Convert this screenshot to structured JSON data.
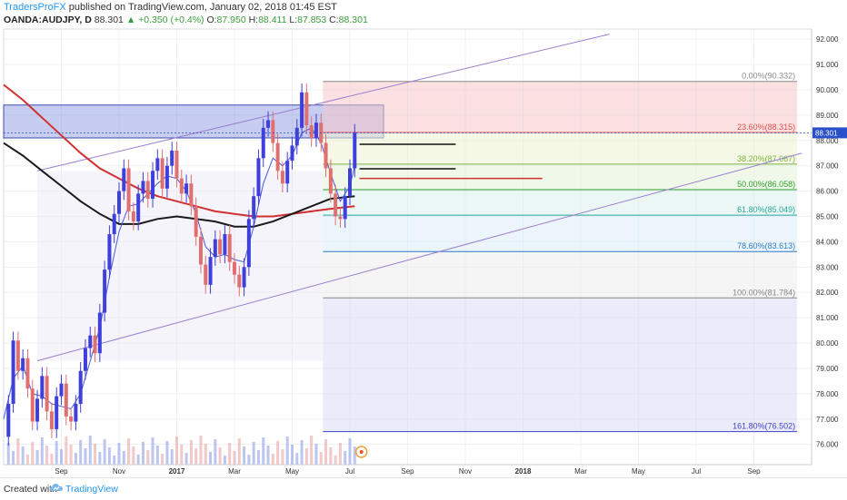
{
  "header": {
    "publisher": "TradersProFX",
    "published_text": "published on TradingView.com, January 02, 2018 01:45 EST",
    "symbol": "OANDA:AUDJPY, D",
    "last": "88.301",
    "change_arrow": "▲",
    "change": "+0.350 (+0.4%)",
    "o_label": "O:",
    "o_value": "87.950",
    "h_label": "H:",
    "h_value": "88.411",
    "l_label": "L:",
    "l_value": "87.853",
    "c_label": "C:",
    "c_value": "88.301"
  },
  "footer": {
    "created_with": "Created with",
    "brand": "TradingView",
    "logo_icon": "tradingview-cloud-icon"
  },
  "colors": {
    "up_candle": "#3f3fdc",
    "down_candle": "#e07070",
    "sma_short": "#4a5ad8",
    "sma_mid": "#1a1a1a",
    "sma_long": "#d23030",
    "channel": "#9a7fd0",
    "price_tag": "#2950c8"
  },
  "chart_data": {
    "type": "candlestick",
    "symbol": "OANDA:AUDJPY",
    "interval": "D",
    "x_axis_labels": [
      "Sep",
      "Nov",
      "2017",
      "Mar",
      "May",
      "Jul",
      "Sep",
      "Nov",
      "2018",
      "Mar",
      "May",
      "Jul",
      "Sep"
    ],
    "y_axis_labels": [
      "92.000",
      "91.000",
      "90.000",
      "89.000",
      "88.000",
      "87.000",
      "86.000",
      "85.000",
      "84.000",
      "83.000",
      "82.000",
      "81.000",
      "80.000",
      "79.000",
      "78.000",
      "77.000",
      "76.000"
    ],
    "ylim": [
      75.2,
      92.4
    ],
    "last_price_tag": "88.301",
    "fibonacci": [
      {
        "label": "0.00%(90.332)",
        "price": 90.332,
        "color": "#888888"
      },
      {
        "label": "23.60%(88.315)",
        "price": 88.315,
        "color": "#e05050"
      },
      {
        "label": "38.20%(87.067)",
        "price": 87.067,
        "color": "#7cb342"
      },
      {
        "label": "50.00%(86.058)",
        "price": 86.058,
        "color": "#2e9e2e"
      },
      {
        "label": "61.80%(85.049)",
        "price": 85.049,
        "color": "#26a69a"
      },
      {
        "label": "78.60%(83.613)",
        "price": 83.613,
        "color": "#2a7ac8"
      },
      {
        "label": "100.00%(81.784)",
        "price": 81.784,
        "color": "#888888"
      },
      {
        "label": "161.80%(76.502)",
        "price": 76.502,
        "color": "#3f3fc8"
      }
    ],
    "close_series": [
      {
        "t": 0.0,
        "c": 76.3
      },
      {
        "t": 0.5,
        "c": 77.6
      },
      {
        "t": 1.0,
        "c": 80.1
      },
      {
        "t": 1.5,
        "c": 78.9
      },
      {
        "t": 2.0,
        "c": 79.4
      },
      {
        "t": 2.5,
        "c": 78.2
      },
      {
        "t": 3.0,
        "c": 76.9
      },
      {
        "t": 3.5,
        "c": 77.8
      },
      {
        "t": 4.0,
        "c": 78.7
      },
      {
        "t": 4.5,
        "c": 77.3
      },
      {
        "t": 5.0,
        "c": 76.6
      },
      {
        "t": 5.5,
        "c": 77.9
      },
      {
        "t": 6.0,
        "c": 78.4
      },
      {
        "t": 6.5,
        "c": 77.1
      },
      {
        "t": 7.0,
        "c": 76.9
      },
      {
        "t": 7.5,
        "c": 77.6
      },
      {
        "t": 8.0,
        "c": 78.9
      },
      {
        "t": 8.5,
        "c": 79.8
      },
      {
        "t": 9.0,
        "c": 80.3
      },
      {
        "t": 9.5,
        "c": 79.6
      },
      {
        "t": 10.0,
        "c": 81.2
      },
      {
        "t": 10.5,
        "c": 82.9
      },
      {
        "t": 11.0,
        "c": 84.3
      },
      {
        "t": 11.5,
        "c": 85.1
      },
      {
        "t": 12.0,
        "c": 86.0
      },
      {
        "t": 12.5,
        "c": 86.9
      },
      {
        "t": 13.0,
        "c": 85.2
      },
      {
        "t": 13.5,
        "c": 84.8
      },
      {
        "t": 14.0,
        "c": 85.9
      },
      {
        "t": 14.5,
        "c": 86.4
      },
      {
        "t": 15.0,
        "c": 85.7
      },
      {
        "t": 15.5,
        "c": 86.8
      },
      {
        "t": 16.0,
        "c": 87.3
      },
      {
        "t": 16.5,
        "c": 86.1
      },
      {
        "t": 17.0,
        "c": 87.0
      },
      {
        "t": 17.5,
        "c": 87.6
      },
      {
        "t": 18.0,
        "c": 86.5
      },
      {
        "t": 18.5,
        "c": 85.9
      },
      {
        "t": 19.0,
        "c": 86.3
      },
      {
        "t": 19.5,
        "c": 85.4
      },
      {
        "t": 20.0,
        "c": 84.2
      },
      {
        "t": 20.5,
        "c": 83.1
      },
      {
        "t": 21.0,
        "c": 82.3
      },
      {
        "t": 21.5,
        "c": 83.4
      },
      {
        "t": 22.0,
        "c": 84.1
      },
      {
        "t": 22.5,
        "c": 83.5
      },
      {
        "t": 23.0,
        "c": 84.3
      },
      {
        "t": 23.5,
        "c": 83.2
      },
      {
        "t": 24.0,
        "c": 82.7
      },
      {
        "t": 24.5,
        "c": 82.2
      },
      {
        "t": 25.0,
        "c": 83.0
      },
      {
        "t": 25.5,
        "c": 84.9
      },
      {
        "t": 26.0,
        "c": 85.8
      },
      {
        "t": 26.5,
        "c": 87.3
      },
      {
        "t": 27.0,
        "c": 88.5
      },
      {
        "t": 27.5,
        "c": 88.8
      },
      {
        "t": 28.0,
        "c": 87.9
      },
      {
        "t": 28.5,
        "c": 86.8
      },
      {
        "t": 29.0,
        "c": 86.3
      },
      {
        "t": 29.5,
        "c": 87.2
      },
      {
        "t": 30.0,
        "c": 87.8
      },
      {
        "t": 30.5,
        "c": 88.5
      },
      {
        "t": 31.0,
        "c": 89.9
      },
      {
        "t": 31.5,
        "c": 88.6
      },
      {
        "t": 32.0,
        "c": 88.1
      },
      {
        "t": 32.5,
        "c": 88.7
      },
      {
        "t": 33.0,
        "c": 87.9
      },
      {
        "t": 33.5,
        "c": 86.9
      },
      {
        "t": 34.0,
        "c": 85.9
      },
      {
        "t": 34.5,
        "c": 85.0
      },
      {
        "t": 35.0,
        "c": 84.9
      },
      {
        "t": 35.5,
        "c": 85.8
      },
      {
        "t": 36.0,
        "c": 86.9
      },
      {
        "t": 36.5,
        "c": 88.3
      }
    ],
    "sma_short": [
      {
        "t": 0.0,
        "c": 77.0
      },
      {
        "t": 1.0,
        "c": 78.6
      },
      {
        "t": 2.0,
        "c": 79.1
      },
      {
        "t": 3.0,
        "c": 78.0
      },
      {
        "t": 4.0,
        "c": 77.9
      },
      {
        "t": 5.0,
        "c": 77.6
      },
      {
        "t": 6.0,
        "c": 77.5
      },
      {
        "t": 7.0,
        "c": 77.4
      },
      {
        "t": 8.0,
        "c": 78.0
      },
      {
        "t": 9.0,
        "c": 79.3
      },
      {
        "t": 10.0,
        "c": 80.6
      },
      {
        "t": 11.0,
        "c": 82.6
      },
      {
        "t": 12.0,
        "c": 84.4
      },
      {
        "t": 13.0,
        "c": 85.4
      },
      {
        "t": 14.0,
        "c": 85.5
      },
      {
        "t": 15.0,
        "c": 85.9
      },
      {
        "t": 16.0,
        "c": 86.3
      },
      {
        "t": 17.0,
        "c": 86.6
      },
      {
        "t": 18.0,
        "c": 86.5
      },
      {
        "t": 19.0,
        "c": 86.0
      },
      {
        "t": 20.0,
        "c": 85.1
      },
      {
        "t": 21.0,
        "c": 83.8
      },
      {
        "t": 22.0,
        "c": 83.4
      },
      {
        "t": 23.0,
        "c": 83.5
      },
      {
        "t": 24.0,
        "c": 83.3
      },
      {
        "t": 25.0,
        "c": 83.2
      },
      {
        "t": 26.0,
        "c": 84.6
      },
      {
        "t": 27.0,
        "c": 86.3
      },
      {
        "t": 28.0,
        "c": 87.3
      },
      {
        "t": 29.0,
        "c": 87.0
      },
      {
        "t": 30.0,
        "c": 87.4
      },
      {
        "t": 31.0,
        "c": 88.3
      },
      {
        "t": 32.0,
        "c": 88.5
      },
      {
        "t": 33.0,
        "c": 87.9
      },
      {
        "t": 34.0,
        "c": 86.7
      },
      {
        "t": 35.0,
        "c": 85.6
      },
      {
        "t": 36.0,
        "c": 86.2
      },
      {
        "t": 36.5,
        "c": 87.0
      }
    ],
    "sma_mid": [
      {
        "t": 0.0,
        "c": 87.9
      },
      {
        "t": 2.0,
        "c": 87.4
      },
      {
        "t": 4.0,
        "c": 86.8
      },
      {
        "t": 6.0,
        "c": 86.2
      },
      {
        "t": 8.0,
        "c": 85.6
      },
      {
        "t": 10.0,
        "c": 85.1
      },
      {
        "t": 12.0,
        "c": 84.7
      },
      {
        "t": 14.0,
        "c": 84.7
      },
      {
        "t": 16.0,
        "c": 84.9
      },
      {
        "t": 18.0,
        "c": 85.0
      },
      {
        "t": 20.0,
        "c": 84.9
      },
      {
        "t": 22.0,
        "c": 84.8
      },
      {
        "t": 24.0,
        "c": 84.6
      },
      {
        "t": 26.0,
        "c": 84.6
      },
      {
        "t": 28.0,
        "c": 84.8
      },
      {
        "t": 30.0,
        "c": 85.1
      },
      {
        "t": 32.0,
        "c": 85.4
      },
      {
        "t": 34.0,
        "c": 85.7
      },
      {
        "t": 36.5,
        "c": 85.8
      }
    ],
    "sma_long": [
      {
        "t": 0.0,
        "c": 90.2
      },
      {
        "t": 2.0,
        "c": 89.6
      },
      {
        "t": 4.0,
        "c": 88.9
      },
      {
        "t": 6.0,
        "c": 88.2
      },
      {
        "t": 8.0,
        "c": 87.5
      },
      {
        "t": 10.0,
        "c": 86.9
      },
      {
        "t": 12.0,
        "c": 86.5
      },
      {
        "t": 14.0,
        "c": 86.1
      },
      {
        "t": 16.0,
        "c": 85.8
      },
      {
        "t": 18.0,
        "c": 85.6
      },
      {
        "t": 20.0,
        "c": 85.4
      },
      {
        "t": 22.0,
        "c": 85.2
      },
      {
        "t": 24.0,
        "c": 85.1
      },
      {
        "t": 26.0,
        "c": 85.0
      },
      {
        "t": 28.0,
        "c": 85.0
      },
      {
        "t": 30.0,
        "c": 85.1
      },
      {
        "t": 32.0,
        "c": 85.2
      },
      {
        "t": 34.0,
        "c": 85.3
      },
      {
        "t": 36.5,
        "c": 85.4
      }
    ],
    "channel": {
      "upper": [
        {
          "t": 3.5,
          "c": 86.8
        },
        {
          "t": 63.0,
          "c": 92.2
        }
      ],
      "lower": [
        {
          "t": 3.5,
          "c": 79.3
        },
        {
          "t": 83.0,
          "c": 87.5
        }
      ]
    },
    "horizontal_lines": [
      {
        "price": 87.85,
        "t_start": 37.0,
        "t_end": 47.0,
        "color": "#111111"
      },
      {
        "price": 86.88,
        "t_start": 37.0,
        "t_end": 47.0,
        "color": "#111111"
      },
      {
        "price": 86.5,
        "t_start": 37.0,
        "t_end": 56.0,
        "color": "#d23030"
      }
    ],
    "zones": [
      {
        "price_top": 89.4,
        "price_bottom": 88.1,
        "t_start": 0.0,
        "t_end": 39.5,
        "color": "#5b6fd6",
        "label": ""
      }
    ]
  }
}
